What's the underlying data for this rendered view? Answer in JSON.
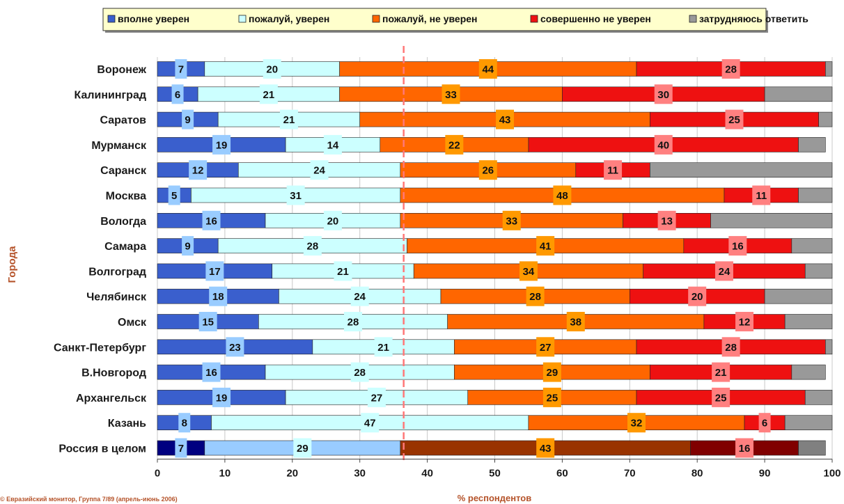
{
  "chart_data": {
    "type": "bar",
    "orientation": "horizontal",
    "stacked": true,
    "title": "",
    "xlabel": "% респондентов",
    "ylabel": "Города",
    "xlim": [
      0,
      100
    ],
    "xticks": [
      0,
      10,
      20,
      30,
      40,
      50,
      60,
      70,
      80,
      90,
      100
    ],
    "legend_position": "top",
    "categories": [
      "Воронеж",
      "Калининград",
      "Саратов",
      "Мурманск",
      "Саранск",
      "Москва",
      "Вологда",
      "Самара",
      "Волгоград",
      "Челябинск",
      "Омск",
      "Санкт-Петербург",
      "В.Новгород",
      "Архангельск",
      "Казань",
      "Россия в целом"
    ],
    "series": [
      {
        "name": "вполне уверен",
        "color": "#3a5fcd",
        "values": [
          7,
          6,
          9,
          19,
          12,
          5,
          16,
          9,
          17,
          18,
          15,
          23,
          16,
          19,
          8,
          7
        ],
        "labels": [
          "7",
          "6",
          "9",
          "19",
          "12",
          "5",
          "16",
          "9",
          "17",
          "18",
          "15",
          "23",
          "16",
          "19",
          "8",
          "7"
        ]
      },
      {
        "name": "пожалуй, уверен",
        "color": "#ccffff",
        "values": [
          20,
          21,
          21,
          14,
          24,
          31,
          20,
          28,
          21,
          24,
          28,
          21,
          28,
          27,
          47,
          29
        ],
        "labels": [
          "20",
          "21",
          "21",
          "14",
          "24",
          "31",
          "20",
          "28",
          "21",
          "24",
          "28",
          "21",
          "28",
          "27",
          "47",
          "29"
        ]
      },
      {
        "name": "пожалуй, не уверен",
        "color": "#ff6600",
        "values": [
          44,
          33,
          43,
          22,
          26,
          48,
          33,
          41,
          34,
          28,
          38,
          27,
          29,
          25,
          32,
          43
        ],
        "labels": [
          "44",
          "33",
          "43",
          "22",
          "26",
          "48",
          "33",
          "41",
          "34",
          "28",
          "38",
          "27",
          "29",
          "25",
          "32",
          "43"
        ]
      },
      {
        "name": "совершенно не уверен",
        "color": "#ee1111",
        "values": [
          28,
          30,
          25,
          40,
          11,
          11,
          13,
          16,
          24,
          20,
          12,
          28,
          21,
          25,
          6,
          16
        ],
        "labels": [
          "28",
          "30",
          "25",
          "40",
          "11",
          "11",
          "13",
          "16",
          "24",
          "20",
          "12",
          "28",
          "21",
          "25",
          "6",
          "16"
        ]
      },
      {
        "name": "затрудняюсь ответить",
        "color": "#999999",
        "values": [
          1,
          10,
          2,
          4,
          28,
          5,
          18,
          6,
          4,
          11,
          8,
          2,
          5,
          4,
          7,
          4
        ],
        "labels": [
          "",
          "",
          "",
          "",
          "",
          "",
          "",
          "",
          "",
          "",
          "",
          "",
          "",
          "",
          "",
          ""
        ]
      }
    ],
    "summary_row_colors": [
      "#000080",
      "#99ccff",
      "#993300",
      "#800000",
      "#808080"
    ],
    "reference_line": {
      "value": 36.5,
      "color": "#ff7777",
      "style": "dashed"
    },
    "footnote": "© Евразийский монитор, Группа 7/89 (апрель-июнь 2006)"
  }
}
